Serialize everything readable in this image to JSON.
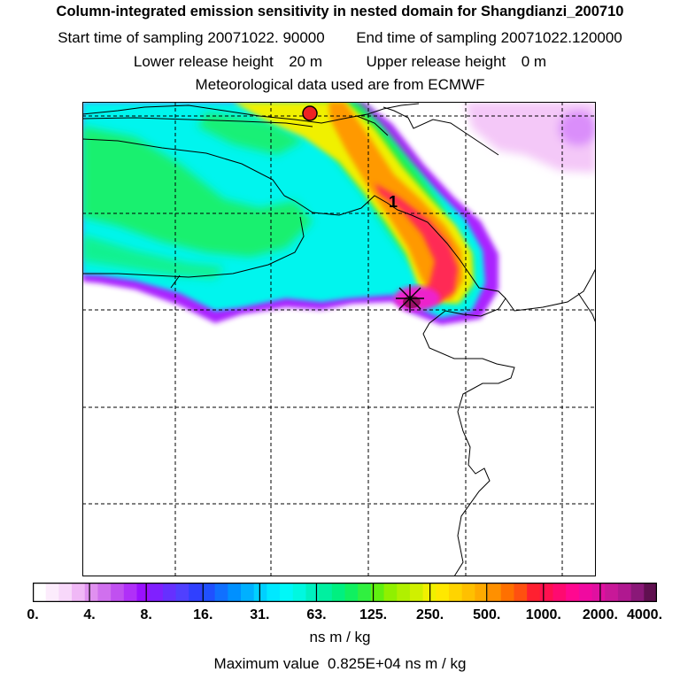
{
  "header": {
    "title": "Column-integrated emission sensitivity in nested domain for Shangdianzi_200710",
    "start_label": "Start time of sampling",
    "start_value": "20071022. 90000",
    "end_label": "End time of sampling",
    "end_value": "20071022.120000",
    "lower_label": "Lower release height",
    "lower_value": "20 m",
    "upper_label": "Upper release height",
    "upper_value": "0 m",
    "met_line": "Meteorological data used are from ECMWF"
  },
  "map": {
    "marker_label": "1",
    "colors": {
      "green": "#22ee44",
      "cyan": "#00f5ee",
      "yellow": "#f0f000",
      "orange": "#ff9900",
      "red": "#ff2a55",
      "magenta": "#ee22cc",
      "violet": "#aa22ff",
      "deep": "#991166",
      "pink": "#f4c8f8"
    }
  },
  "colorbar": {
    "ticks": [
      "0.",
      "4.",
      "8.",
      "16.",
      "31.",
      "63.",
      "125.",
      "250.",
      "500.",
      "1000.",
      "2000.",
      "4000."
    ],
    "colors": [
      "#ffffff",
      "#fcecfc",
      "#f8d8fa",
      "#f0b8f6",
      "#e090f0",
      "#d070ee",
      "#c050f0",
      "#b030f8",
      "#9a10ff",
      "#8020ff",
      "#6630ff",
      "#5040ff",
      "#3040ff",
      "#2050ff",
      "#1070ff",
      "#0090ff",
      "#00b0ff",
      "#00d0ff",
      "#00e8ff",
      "#00f8f8",
      "#00f8e0",
      "#00f0c0",
      "#00f0a0",
      "#00f080",
      "#10f060",
      "#30f040",
      "#60f010",
      "#90f000",
      "#b0f000",
      "#d0f000",
      "#f0f000",
      "#ffe800",
      "#ffd400",
      "#ffc000",
      "#ffaa00",
      "#ff9000",
      "#ff7000",
      "#ff5010",
      "#ff2030",
      "#ff1050",
      "#ff0a70",
      "#ff0890",
      "#f00aa0",
      "#e010a0",
      "#c81898",
      "#b01890",
      "#8a1878",
      "#601050"
    ],
    "units": "ns m / kg"
  },
  "footer": {
    "max_label": "Maximum value",
    "max_value": "0.825E+04",
    "max_units": "ns m / kg"
  }
}
